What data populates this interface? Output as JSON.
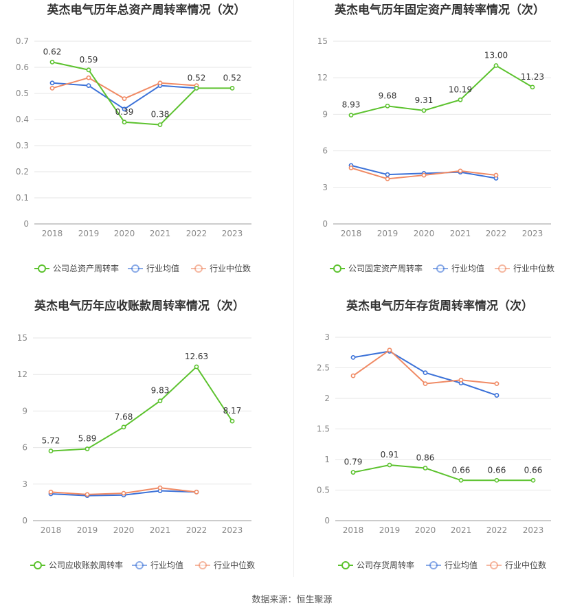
{
  "footer": {
    "source": "数据来源：恒生聚源"
  },
  "colors": {
    "company": "#5cc22e",
    "avg": "#3c72d8",
    "median": "#f08a64",
    "grid": "#e6e6e6",
    "axis": "#888888"
  },
  "chart_data": [
    {
      "type": "line",
      "title": "英杰电气历年总资产周转率情况（次）",
      "categories": [
        "2018",
        "2019",
        "2020",
        "2021",
        "2022",
        "2023"
      ],
      "ylim": [
        0,
        0.7
      ],
      "yticks": [
        0,
        0.1,
        0.2,
        0.3,
        0.4,
        0.5,
        0.6,
        0.7
      ],
      "legend_position": "bottom",
      "series": [
        {
          "name": "公司总资产周转率",
          "role": "company",
          "values": [
            0.62,
            0.59,
            0.39,
            0.38,
            0.52,
            0.52
          ],
          "labels": [
            "0.62",
            "0.59",
            "0.39",
            "0.38",
            "0.52",
            "0.52"
          ]
        },
        {
          "name": "行业均值",
          "role": "avg",
          "values": [
            0.54,
            0.53,
            0.44,
            0.53,
            0.52,
            null
          ]
        },
        {
          "name": "行业中位数",
          "role": "median",
          "values": [
            0.52,
            0.56,
            0.48,
            0.54,
            0.53,
            null
          ]
        }
      ]
    },
    {
      "type": "line",
      "title": "英杰电气历年固定资产周转率情况（次）",
      "categories": [
        "2018",
        "2019",
        "2020",
        "2021",
        "2022",
        "2023"
      ],
      "ylim": [
        0,
        15
      ],
      "yticks": [
        0,
        3,
        6,
        9,
        12,
        15
      ],
      "legend_position": "bottom",
      "series": [
        {
          "name": "公司固定资产周转率",
          "role": "company",
          "values": [
            8.93,
            9.68,
            9.31,
            10.19,
            13.0,
            11.23
          ],
          "labels": [
            "8.93",
            "9.68",
            "9.31",
            "10.19",
            "13.00",
            "11.23"
          ]
        },
        {
          "name": "行业均值",
          "role": "avg",
          "values": [
            4.8,
            4.05,
            4.15,
            4.25,
            3.75,
            null
          ]
        },
        {
          "name": "行业中位数",
          "role": "median",
          "values": [
            4.6,
            3.7,
            4.0,
            4.35,
            4.0,
            null
          ]
        }
      ]
    },
    {
      "type": "line",
      "title": "英杰电气历年应收账款周转率情况（次）",
      "categories": [
        "2018",
        "2019",
        "2020",
        "2021",
        "2022",
        "2023"
      ],
      "ylim": [
        0,
        15
      ],
      "yticks": [
        0,
        3,
        6,
        9,
        12,
        15
      ],
      "legend_position": "bottom",
      "series": [
        {
          "name": "公司应收账款周转率",
          "role": "company",
          "values": [
            5.72,
            5.89,
            7.68,
            9.83,
            12.63,
            8.17
          ],
          "labels": [
            "5.72",
            "5.89",
            "7.68",
            "9.83",
            "12.63",
            "8.17"
          ]
        },
        {
          "name": "行业均值",
          "role": "avg",
          "values": [
            2.2,
            2.05,
            2.1,
            2.45,
            2.35,
            null
          ]
        },
        {
          "name": "行业中位数",
          "role": "median",
          "values": [
            2.35,
            2.15,
            2.25,
            2.7,
            2.35,
            null
          ]
        }
      ]
    },
    {
      "type": "line",
      "title": "英杰电气历年存货周转率情况（次）",
      "categories": [
        "2018",
        "2019",
        "2020",
        "2021",
        "2022",
        "2023"
      ],
      "ylim": [
        0,
        3
      ],
      "yticks": [
        0,
        0.5,
        1,
        1.5,
        2,
        2.5,
        3
      ],
      "legend_position": "bottom",
      "series": [
        {
          "name": "公司存货周转率",
          "role": "company",
          "values": [
            0.79,
            0.91,
            0.86,
            0.66,
            0.66,
            0.66
          ],
          "labels": [
            "0.79",
            "0.91",
            "0.86",
            "0.66",
            "0.66",
            "0.66"
          ]
        },
        {
          "name": "行业均值",
          "role": "avg",
          "values": [
            2.67,
            2.77,
            2.42,
            2.25,
            2.05,
            null
          ]
        },
        {
          "name": "行业中位数",
          "role": "median",
          "values": [
            2.37,
            2.79,
            2.24,
            2.3,
            2.24,
            null
          ]
        }
      ]
    }
  ]
}
